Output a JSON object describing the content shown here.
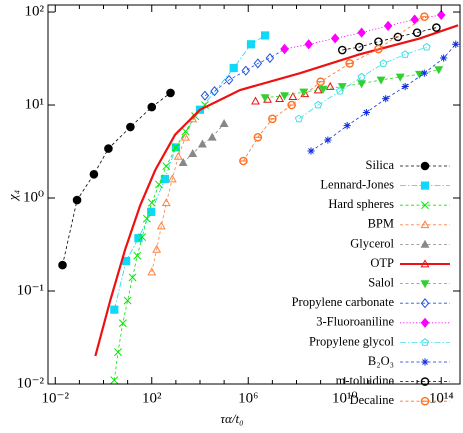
{
  "chart_data": {
    "type": "scatter",
    "log_x": true,
    "log_y": true,
    "xlabel": "τα/t₀",
    "ylabel": "χ₄",
    "xlim": [
      0.005,
      600000000000000.0
    ],
    "ylim": [
      0.01,
      119
    ],
    "xticks": [
      {
        "value": 0.01,
        "label": "10⁻²"
      },
      {
        "value": 100,
        "label": "10²"
      },
      {
        "value": 1000000,
        "label": "10⁶"
      },
      {
        "value": 10000000000,
        "label": "10¹⁰"
      },
      {
        "value": 100000000000000,
        "label": "10¹⁴"
      }
    ],
    "xminor": [
      0.1,
      1,
      10,
      1000,
      10000,
      100000,
      10000000,
      100000000,
      1000000000,
      100000000000,
      1000000000000,
      10000000000000
    ],
    "yticks": [
      {
        "value": 0.01,
        "label": "10⁻²"
      },
      {
        "value": 0.1,
        "label": "10⁻¹"
      },
      {
        "value": 1,
        "label": "10⁰"
      },
      {
        "value": 10,
        "label": "10¹"
      },
      {
        "value": 100,
        "label": "10²"
      }
    ],
    "legend": "right",
    "series": [
      {
        "name": "Silica",
        "color": "#000000",
        "marker": "circle-filled",
        "dash": "dashed",
        "x": [
          0.02,
          0.08,
          0.4,
          1.6,
          13,
          100,
          600
        ],
        "values": [
          0.19,
          0.95,
          1.8,
          3.4,
          5.8,
          9.5,
          13.5
        ]
      },
      {
        "name": "Lennard-Jones",
        "color": "#10d8f8",
        "marker": "square-filled",
        "dash": "dash-dot",
        "x": [
          2.8,
          8.7,
          28,
          95,
          350,
          1000,
          10000,
          250000,
          1300000,
          5000000
        ],
        "values": [
          0.063,
          0.21,
          0.37,
          0.71,
          1.6,
          3.5,
          8.9,
          25,
          45,
          56
        ]
      },
      {
        "name": "Hard spheres",
        "color": "#00e800",
        "marker": "x",
        "dash": "dashed",
        "x": [
          2.8,
          4,
          6.3,
          10,
          16,
          25,
          40,
          63,
          100,
          200,
          400,
          1000,
          2500,
          6300,
          16000
        ],
        "values": [
          0.011,
          0.022,
          0.045,
          0.079,
          0.14,
          0.24,
          0.38,
          0.6,
          0.89,
          1.4,
          2.2,
          3.5,
          5.2,
          7.6,
          10
        ]
      },
      {
        "name": "BPM",
        "color": "#ff8040",
        "marker": "triangle-open",
        "dash": "dashed",
        "x": [
          100,
          160,
          250,
          400,
          710,
          1260,
          2500,
          5000
        ],
        "values": [
          0.16,
          0.28,
          0.5,
          0.89,
          1.6,
          2.8,
          4.5,
          7.1
        ]
      },
      {
        "name": "Glycerol",
        "color": "#888888",
        "marker": "triangle-filled",
        "dash": "dashed",
        "x": [
          2000,
          5000,
          12600,
          32000,
          100000
        ],
        "values": [
          2.4,
          3,
          3.8,
          4.5,
          6.3
        ]
      },
      {
        "name": "OTP",
        "color": "#ee1111",
        "marker": "triangle-open",
        "dash": "solid",
        "x": [
          2000000,
          6300000,
          20000000,
          71000000,
          220000000,
          790000000,
          2500000000
        ],
        "values": [
          11,
          11.5,
          11.7,
          12.3,
          13.2,
          14.5,
          15.8
        ],
        "fit_x": [
          0.46,
          1.9,
          7.9,
          33,
          140,
          930,
          10000,
          460000,
          140000000,
          40000000000,
          13000000000000,
          500000000000000
        ],
        "fit_values": [
          0.02,
          0.079,
          0.28,
          0.83,
          2,
          4.8,
          8.9,
          14.5,
          22,
          35,
          52,
          72
        ]
      },
      {
        "name": "Salol",
        "color": "#30d030",
        "marker": "triangle-down-filled",
        "dash": "dashed",
        "x": [
          5000000,
          32000000,
          200000000,
          1260000000,
          7900000000,
          50000000000,
          320000000000,
          2000000000000,
          12600000000000,
          79000000000000
        ],
        "values": [
          12,
          12.6,
          13.8,
          14.8,
          15.8,
          17,
          18.6,
          20,
          21.4,
          24
        ]
      },
      {
        "name": "Propylene carbonate",
        "color": "#2050e0",
        "marker": "diamond-open",
        "dash": "dashed",
        "x": [
          16000,
          40000,
          160000,
          790000,
          2500000,
          7900000,
          32000000
        ],
        "values": [
          12.6,
          14.1,
          18.6,
          23.4,
          28,
          32,
          40
        ]
      },
      {
        "name": "3-Fluoroaniline",
        "color": "#ff00ff",
        "marker": "diamond-filled",
        "dash": "dotted",
        "x": [
          32000000,
          320000000,
          4000000000,
          50000000000,
          630000000000,
          7900000000000,
          100000000000000
        ],
        "values": [
          40,
          45,
          52,
          60,
          71,
          83,
          93
        ]
      },
      {
        "name": "Propylene glycol",
        "color": "#40e0e8",
        "marker": "pentagon-open",
        "dash": "dash-dot",
        "x": [
          126000000,
          790000000,
          6300000000,
          50000000000,
          400000000000,
          3200000000000,
          25000000000000
        ],
        "values": [
          7.1,
          10,
          14.1,
          20,
          28,
          35,
          42
        ]
      },
      {
        "name": "B₂O₃",
        "color": "#1030e0",
        "marker": "star",
        "dash": "dashed",
        "x": [
          400000000,
          2000000000,
          12600000000,
          79000000000,
          500000000000,
          3200000000000,
          20000000000000,
          126000000000000,
          400000000000000
        ],
        "values": [
          3.2,
          4.2,
          6,
          8.3,
          11.7,
          15.8,
          22,
          32,
          45
        ]
      },
      {
        "name": "m-toluidine",
        "color": "#000000",
        "marker": "circle-open",
        "dash": "dashed",
        "x": [
          7900000000,
          40000000000,
          250000000000,
          1600000000000,
          10000000000000,
          63000000000000
        ],
        "values": [
          39,
          42,
          48,
          54,
          60,
          68
        ]
      },
      {
        "name": "Decaline",
        "color": "#ff7020",
        "marker": "circle-bar",
        "dash": "dashed",
        "x": [
          630000,
          2500000,
          10000000,
          63000000,
          1000000000,
          16000000000,
          250000000000,
          20000000000000
        ],
        "values": [
          2.5,
          4.5,
          7.1,
          10,
          17.8,
          28,
          40,
          89
        ]
      }
    ]
  }
}
